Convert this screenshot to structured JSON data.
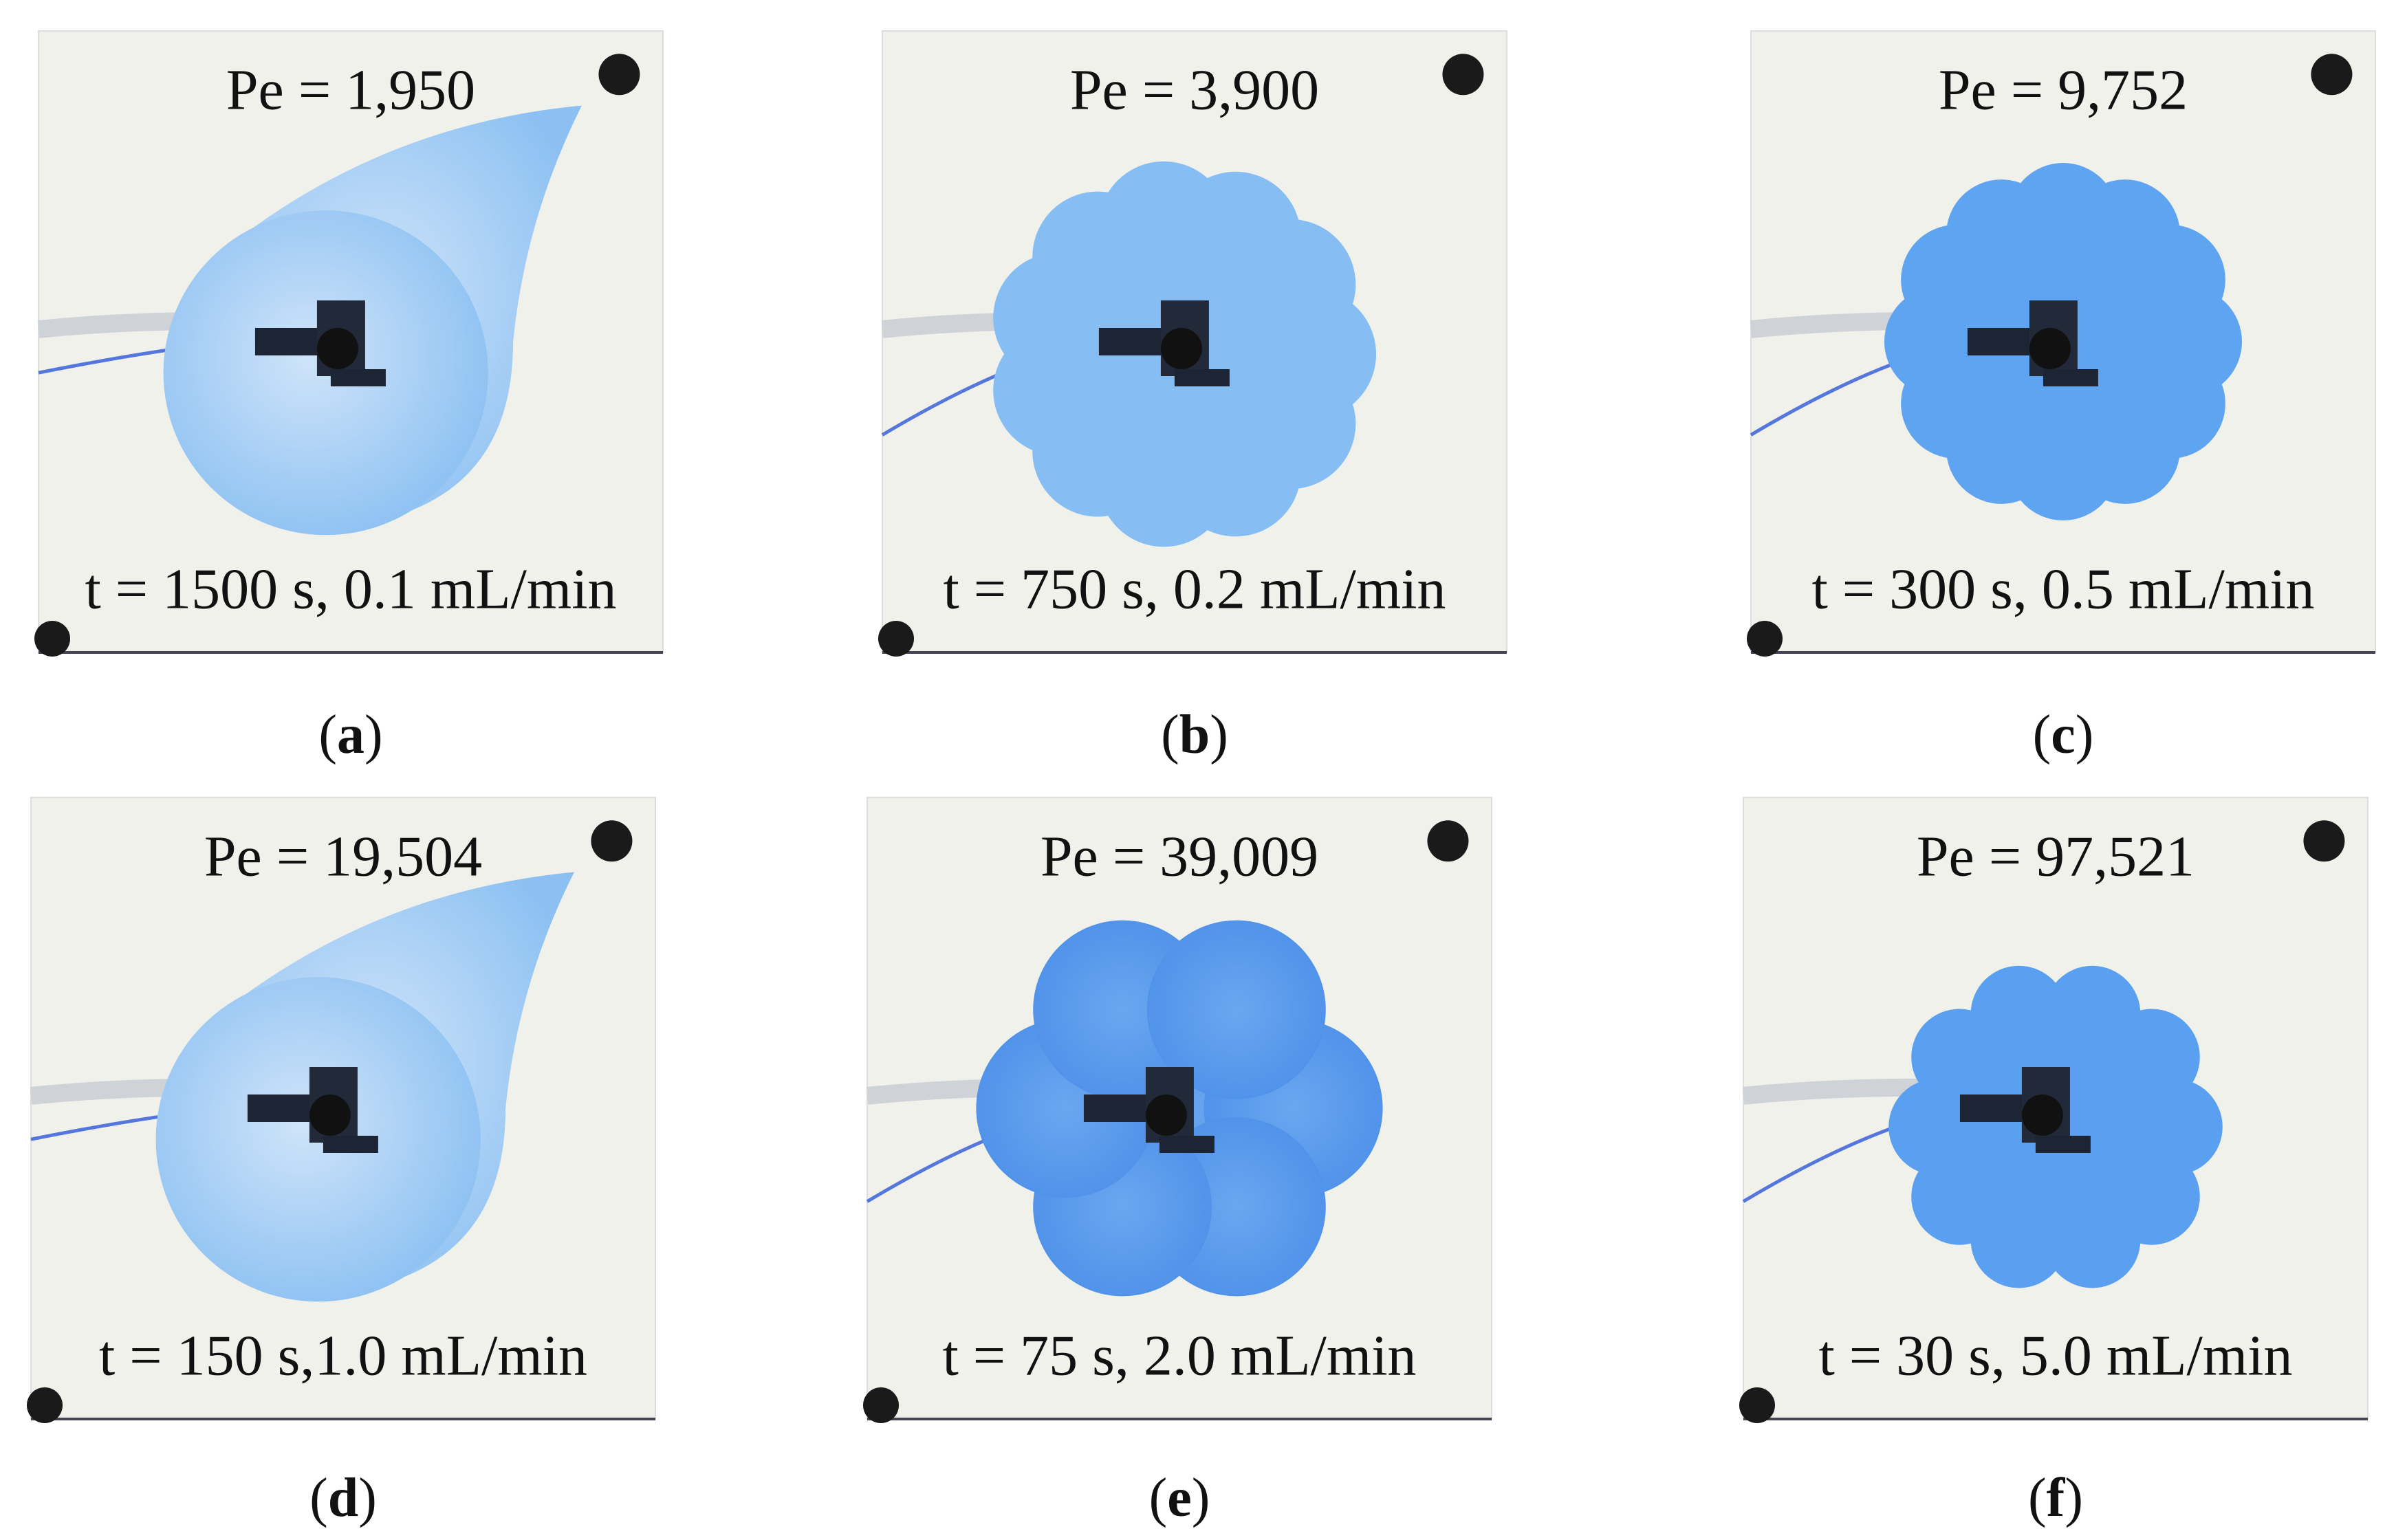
{
  "panels": [
    {
      "pe": "Pe = 1,950",
      "time": "t = 1500 s, 0.1 mL/min",
      "label": "(a)"
    },
    {
      "pe": "Pe = 3,900",
      "time": "t = 750 s, 0.2 mL/min",
      "label": "(b)"
    },
    {
      "pe": "Pe = 9,752",
      "time": "t = 300 s, 0.5 mL/min",
      "label": "(c)"
    },
    {
      "pe": "Pe = 19,504",
      "time": "t = 150 s,1.0 mL/min",
      "label": "(d)"
    },
    {
      "pe": "Pe = 39,009",
      "time": "t = 75 s, 2.0 mL/min",
      "label": "(e)"
    },
    {
      "pe": "Pe = 97,521",
      "time": "t = 30 s, 5.0 mL/min",
      "label": "(f)"
    }
  ]
}
